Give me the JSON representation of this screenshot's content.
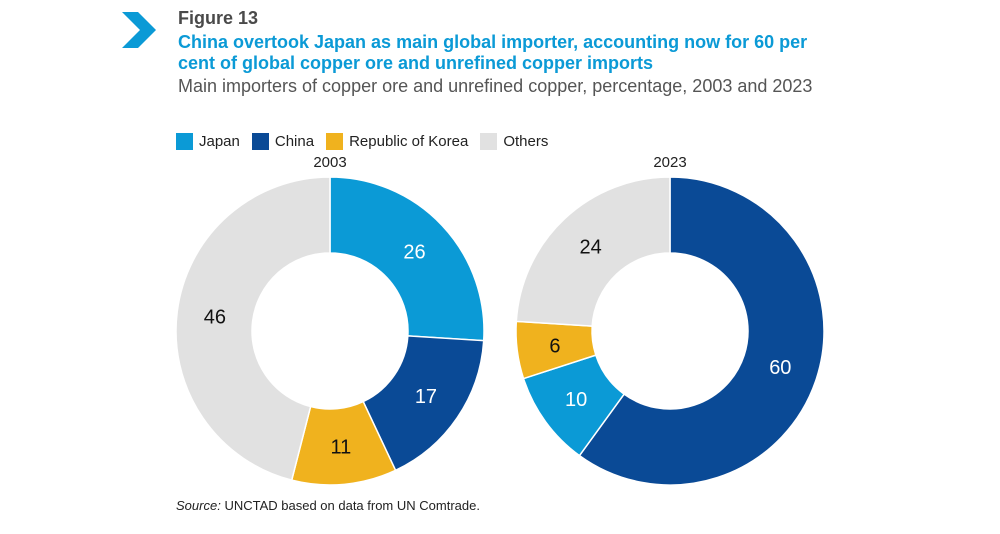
{
  "figure_label": "Figure 13",
  "title": "China overtook Japan as main global importer, accounting now for 60 per cent of global copper ore and unrefined copper imports",
  "subtitle": "Main importers of copper ore and unrefined copper, percentage, 2003 and 2023",
  "source_label": "Source:",
  "source_text": "UNCTAD based on data from UN Comtrade.",
  "icons": {
    "chevron": "chevron-right-icon"
  },
  "colors": {
    "Japan": "#0b9ad6",
    "China": "#0a4a96",
    "Republic of Korea": "#f0b21e",
    "Others": "#e1e1e1"
  },
  "chart_data": [
    {
      "type": "pie",
      "title": "2003",
      "labels": [
        "Japan",
        "China",
        "Republic of Korea",
        "Others"
      ],
      "values": [
        26,
        17,
        11,
        46
      ]
    },
    {
      "type": "pie",
      "title": "2023",
      "labels": [
        "China",
        "Japan",
        "Republic of Korea",
        "Others"
      ],
      "values": [
        60,
        10,
        6,
        24
      ]
    }
  ],
  "legend": [
    "Japan",
    "China",
    "Republic of Korea",
    "Others"
  ]
}
